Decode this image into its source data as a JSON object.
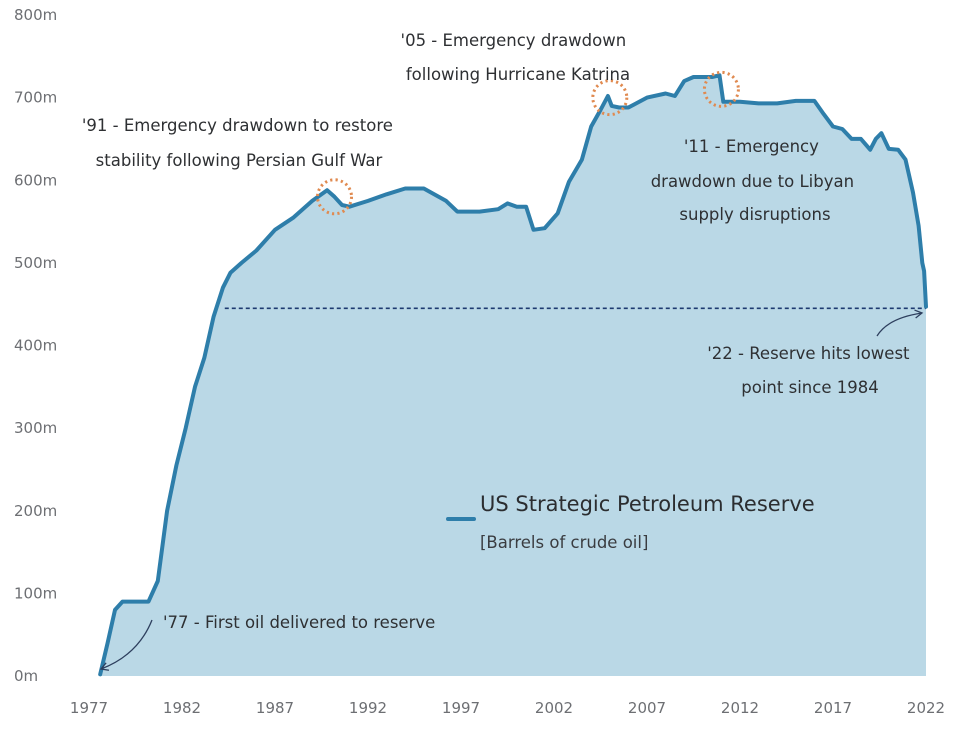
{
  "chart_data": {
    "type": "area",
    "title": "US Strategic Petroleum Reserve",
    "subtitle": "[Barrels of crude oil]",
    "xlabel": "",
    "ylabel": "",
    "xlim": [
      1977,
      2022
    ],
    "ylim": [
      0,
      800
    ],
    "x_ticks": [
      1977,
      1982,
      1987,
      1992,
      1997,
      2002,
      2007,
      2012,
      2017,
      2022
    ],
    "y_ticks": [
      {
        "value": 0,
        "label": "0m"
      },
      {
        "value": 100,
        "label": "100m"
      },
      {
        "value": 200,
        "label": "200m"
      },
      {
        "value": 300,
        "label": "300m"
      },
      {
        "value": 400,
        "label": "400m"
      },
      {
        "value": 500,
        "label": "500m"
      },
      {
        "value": 600,
        "label": "600m"
      },
      {
        "value": 700,
        "label": "700m"
      },
      {
        "value": 800,
        "label": "800m"
      }
    ],
    "grid": false,
    "colors": {
      "line": "#2e7eaa",
      "fill": "#bad8e6",
      "reference": "#1d3a70",
      "marker": "#e08a50",
      "text": "#2e3033"
    },
    "reference_line": {
      "y": 445,
      "from_x": 1984.3,
      "to_x": 2022
    },
    "series": [
      {
        "name": "US Strategic Petroleum Reserve",
        "x": [
          1977.6,
          1978.0,
          1978.4,
          1978.8,
          1979.2,
          1980.2,
          1980.7,
          1981.2,
          1981.7,
          1982.2,
          1982.7,
          1983.2,
          1983.7,
          1984.2,
          1984.6,
          1985.2,
          1986.0,
          1987.0,
          1988.0,
          1989.0,
          1989.8,
          1990.2,
          1990.6,
          1991.0,
          1992.0,
          1993.0,
          1994.0,
          1995.0,
          1996.2,
          1996.8,
          1998.0,
          1999.0,
          1999.5,
          2000.0,
          2000.5,
          2000.9,
          2001.5,
          2002.2,
          2002.8,
          2003.5,
          2004.0,
          2004.5,
          2004.9,
          2005.1,
          2005.5,
          2006.0,
          2007.0,
          2008.0,
          2008.5,
          2009.0,
          2009.5,
          2010.0,
          2010.5,
          2010.9,
          2011.1,
          2011.5,
          2012.0,
          2013.0,
          2014.0,
          2015.0,
          2016.0,
          2016.5,
          2017.0,
          2017.5,
          2018.0,
          2018.5,
          2019.0,
          2019.3,
          2019.6,
          2020.0,
          2020.5,
          2020.9,
          2021.3,
          2021.6,
          2021.8,
          2021.9,
          2022.0
        ],
        "values": [
          2,
          40,
          80,
          90,
          90,
          90,
          115,
          200,
          255,
          300,
          350,
          385,
          435,
          470,
          488,
          500,
          515,
          540,
          555,
          575,
          588,
          580,
          570,
          568,
          575,
          583,
          590,
          590,
          575,
          562,
          562,
          565,
          572,
          568,
          568,
          540,
          542,
          560,
          598,
          625,
          665,
          685,
          702,
          690,
          688,
          688,
          700,
          705,
          702,
          720,
          725,
          725,
          725,
          727,
          695,
          695,
          695,
          693,
          693,
          696,
          696,
          680,
          665,
          662,
          650,
          650,
          637,
          650,
          657,
          638,
          637,
          625,
          585,
          545,
          500,
          490,
          447
        ]
      }
    ],
    "annotations": [
      {
        "lines": [
          "'05 - Emergency drawdown",
          "following Hurricane Katrina"
        ],
        "year": 2005,
        "value": 700
      },
      {
        "lines": [
          "'91 - Emergency drawdown to restore",
          "stability following Persian Gulf War"
        ],
        "year": 1990.2,
        "value": 580
      },
      {
        "lines": [
          "'11 - Emergency",
          "drawdown due to Libyan",
          "supply disruptions"
        ],
        "year": 2011,
        "value": 710
      },
      {
        "lines": [
          "'22 - Reserve hits lowest",
          "point since 1984"
        ],
        "year": 2022,
        "value": 445
      },
      {
        "lines": [
          "'77 - First oil delivered to reserve"
        ],
        "year": 1977.5,
        "value": 3
      }
    ]
  }
}
